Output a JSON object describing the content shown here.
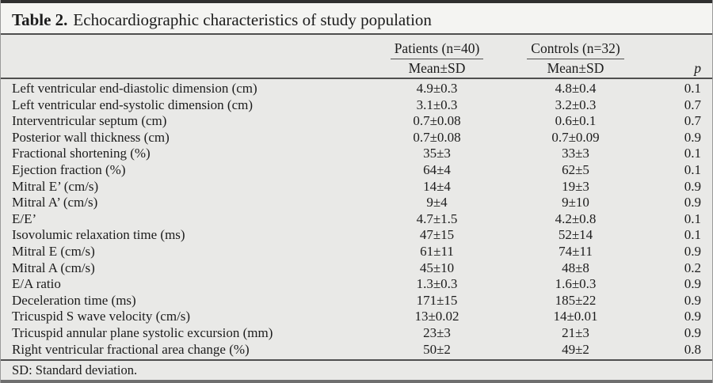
{
  "title": {
    "label": "Table 2.",
    "text": "Echocardiographic characteristics of study population"
  },
  "header": {
    "patients_group": "Patients (n=40)",
    "patients_sub": "Mean±SD",
    "controls_group": "Controls (n=32)",
    "controls_sub": "Mean±SD",
    "p_label": "p"
  },
  "rows": [
    {
      "label": "Left ventricular end-diastolic dimension (cm)",
      "patients": "4.9±0.3",
      "controls": "4.8±0.4",
      "p": "0.1"
    },
    {
      "label": "Left ventricular end-systolic dimension (cm)",
      "patients": "3.1±0.3",
      "controls": "3.2±0.3",
      "p": "0.7"
    },
    {
      "label": "Interventricular septum (cm)",
      "patients": "0.7±0.08",
      "controls": "0.6±0.1",
      "p": "0.7"
    },
    {
      "label": "Posterior wall thickness (cm)",
      "patients": "0.7±0.08",
      "controls": "0.7±0.09",
      "p": "0.9"
    },
    {
      "label": "Fractional shortening (%)",
      "patients": "35±3",
      "controls": "33±3",
      "p": "0.1"
    },
    {
      "label": "Ejection fraction (%)",
      "patients": "64±4",
      "controls": "62±5",
      "p": "0.1"
    },
    {
      "label": "Mitral E’ (cm/s)",
      "patients": "14±4",
      "controls": "19±3",
      "p": "0.9"
    },
    {
      "label": "Mitral A’ (cm/s)",
      "patients": "9±4",
      "controls": "9±10",
      "p": "0.9"
    },
    {
      "label": "E/E’",
      "patients": "4.7±1.5",
      "controls": "4.2±0.8",
      "p": "0.1"
    },
    {
      "label": "Isovolumic relaxation time (ms)",
      "patients": "47±15",
      "controls": "52±14",
      "p": "0.1"
    },
    {
      "label": "Mitral E (cm/s)",
      "patients": "61±11",
      "controls": "74±11",
      "p": "0.9"
    },
    {
      "label": "Mitral A (cm/s)",
      "patients": "45±10",
      "controls": "48±8",
      "p": "0.2"
    },
    {
      "label": "E/A ratio",
      "patients": "1.3±0.3",
      "controls": "1.6±0.3",
      "p": "0.9"
    },
    {
      "label": "Deceleration time (ms)",
      "patients": "171±15",
      "controls": "185±22",
      "p": "0.9"
    },
    {
      "label": "Tricuspid S wave velocity (cm/s)",
      "patients": "13±0.02",
      "controls": "14±0.01",
      "p": "0.9"
    },
    {
      "label": "Tricuspid annular plane systolic excursion (mm)",
      "patients": "23±3",
      "controls": "21±3",
      "p": "0.9"
    },
    {
      "label": "Right ventricular fractional area change (%)",
      "patients": "50±2",
      "controls": "49±2",
      "p": "0.8"
    }
  ],
  "footnote": "SD: Standard deviation."
}
